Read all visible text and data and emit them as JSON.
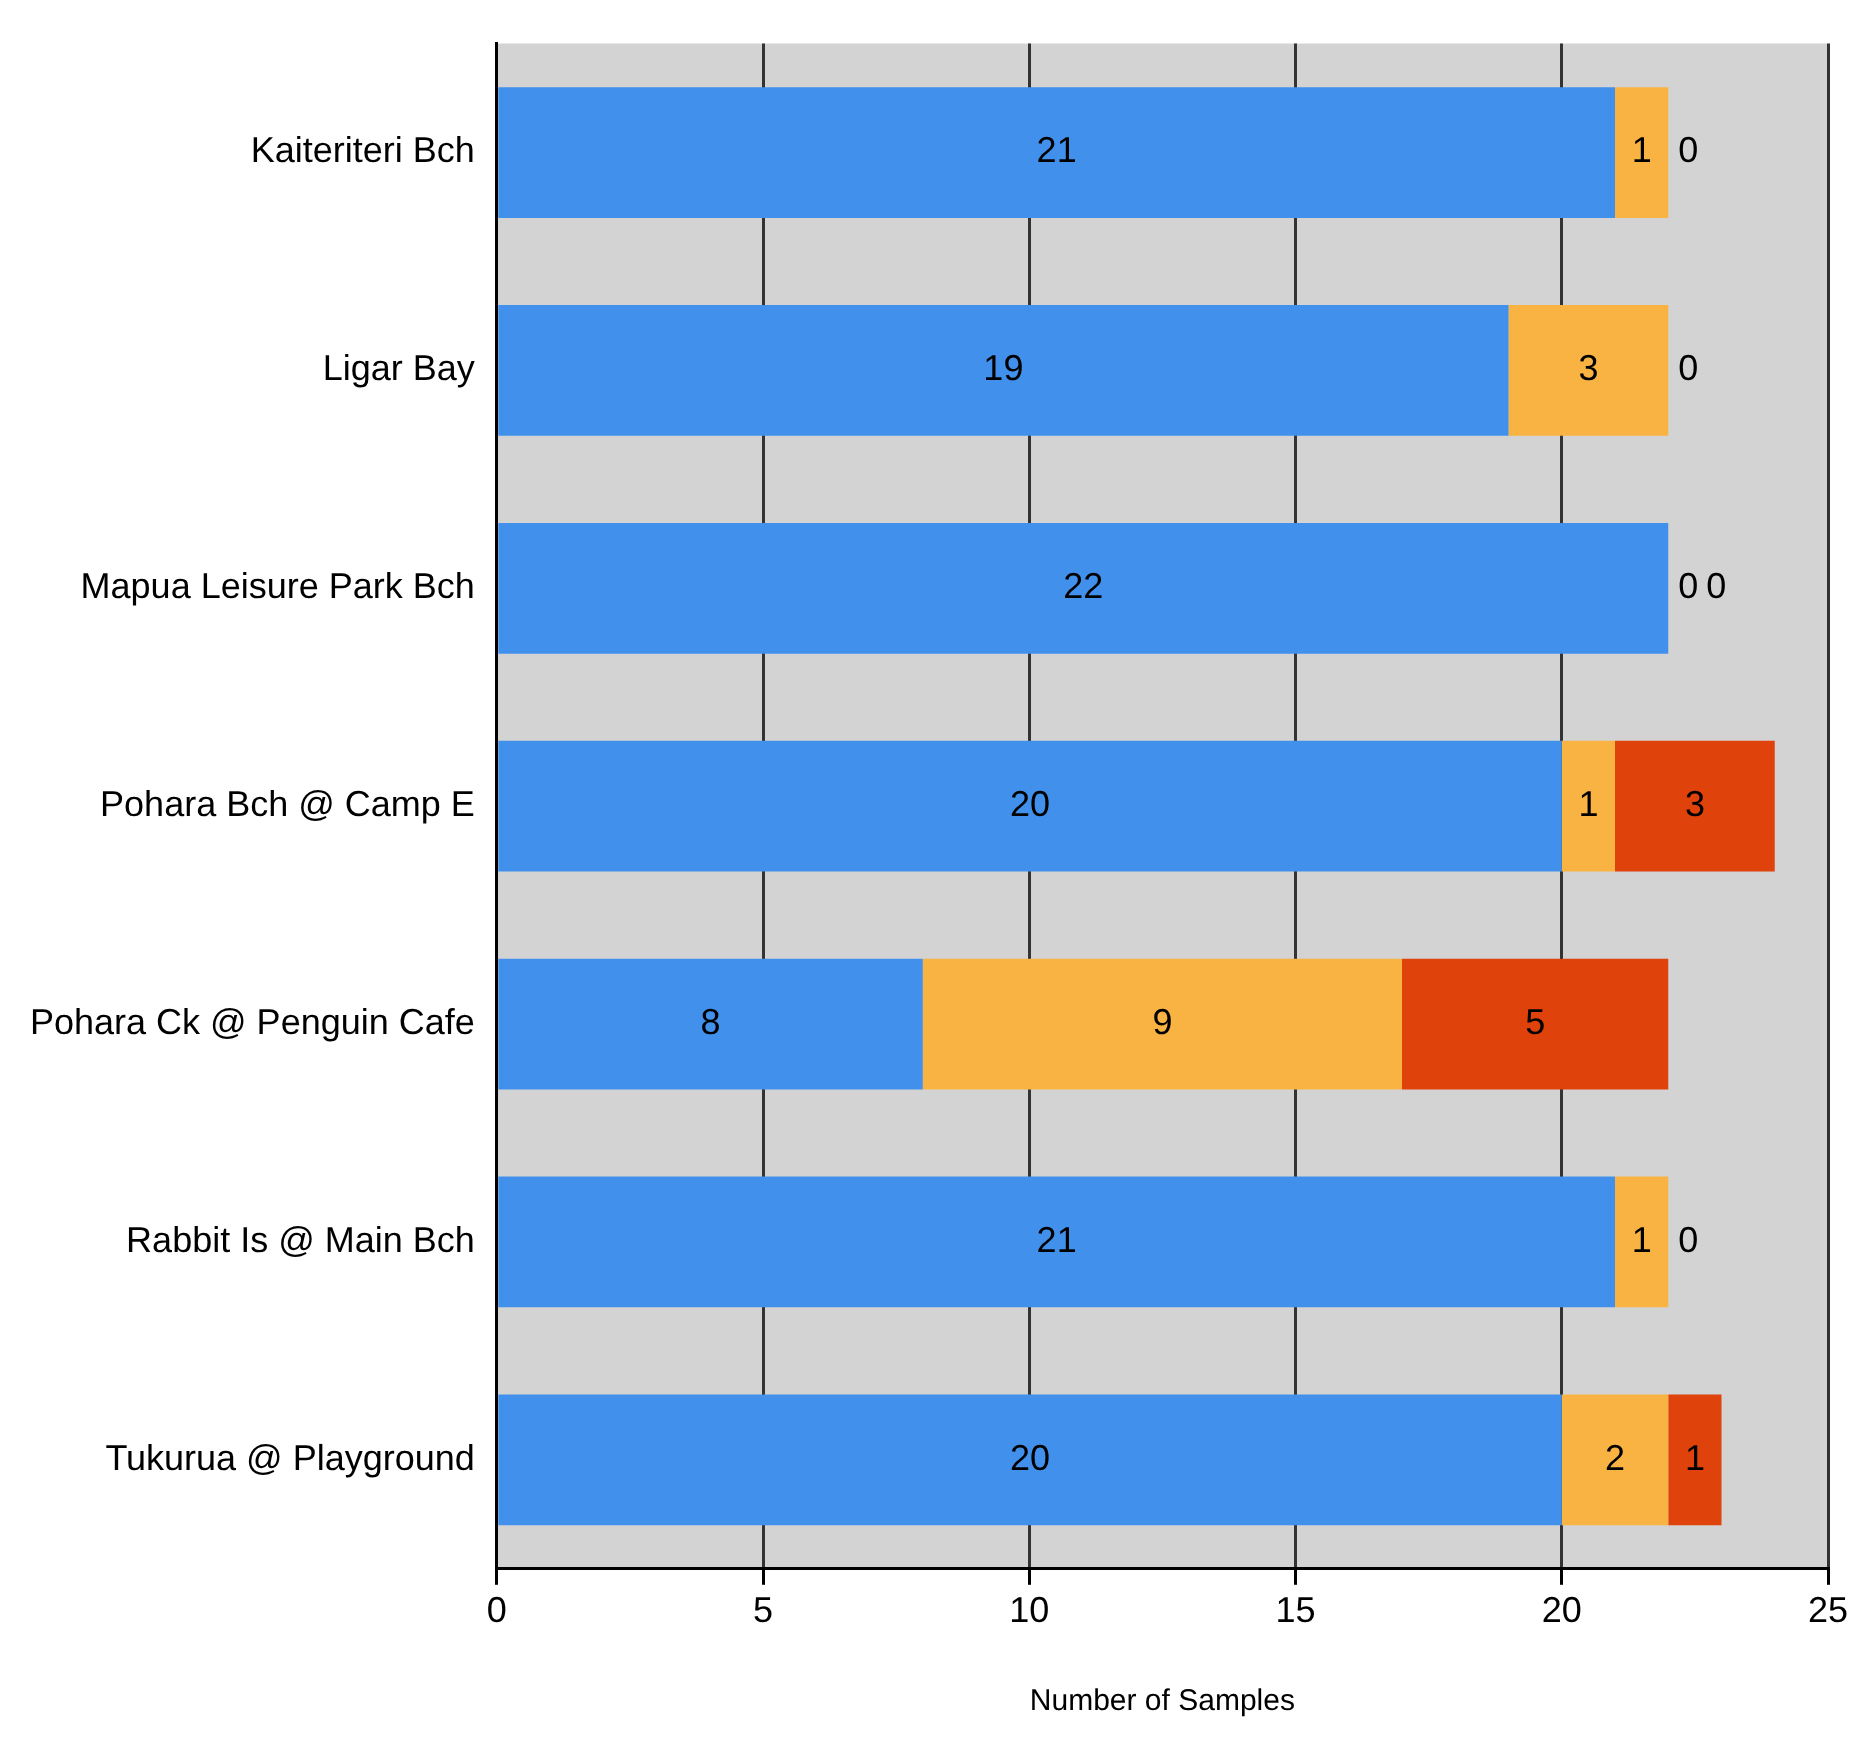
{
  "chart_data": {
    "type": "bar",
    "orientation": "horizontal",
    "stacked": true,
    "xlabel": "Number of Samples",
    "categories": [
      "Kaiteriteri Bch",
      "Ligar Bay",
      "Mapua Leisure Park Bch",
      "Pohara Bch @ Camp E",
      "Pohara Ck @ Penguin Cafe",
      "Rabbit Is @ Main Bch",
      "Tukurua @ Playground"
    ],
    "series": [
      {
        "color": "#4191ec",
        "values": [
          21,
          19,
          22,
          20,
          8,
          21,
          20
        ]
      },
      {
        "color": "#f9b342",
        "values": [
          1,
          3,
          0,
          1,
          9,
          1,
          2
        ]
      },
      {
        "color": "#e0420b",
        "values": [
          0,
          0,
          0,
          3,
          5,
          0,
          1
        ]
      }
    ],
    "xlim": [
      0,
      25
    ],
    "xticks": [
      0,
      5,
      10,
      15,
      20,
      25
    ],
    "grid": "x",
    "legend": false,
    "data_labels": true
  }
}
